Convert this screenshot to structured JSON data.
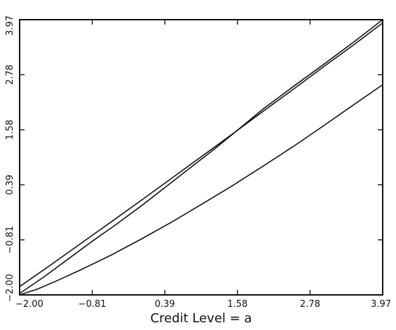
{
  "chart_data": {
    "type": "line",
    "title": "",
    "xlabel": "Credit Level = a",
    "ylabel": "",
    "xlim": [
      -2.0,
      3.97
    ],
    "ylim": [
      -2.0,
      3.97
    ],
    "x_tick_labels": [
      "-2.00",
      "-0.81",
      "0.39",
      "1.58",
      "2.78",
      "3.97"
    ],
    "y_tick_labels": [
      "-2.00",
      "-0.81",
      "0.39",
      "1.58",
      "2.78",
      "3.97"
    ],
    "grid": false,
    "legend": "none",
    "series": [
      {
        "x": [
          -2.0,
          -1.5,
          -1.0,
          -0.5,
          0.0,
          0.5,
          1.0,
          1.5,
          2.0,
          2.5,
          3.0,
          3.5,
          3.97
        ],
        "y": [
          -1.82,
          -1.36,
          -0.89,
          -0.42,
          0.05,
          0.53,
          1.01,
          1.49,
          1.98,
          2.46,
          2.95,
          3.43,
          3.9
        ]
      },
      {
        "x": [
          -2.0,
          -1.6,
          -1.2,
          -0.81,
          -0.4,
          0.0,
          0.39,
          0.8,
          1.2,
          1.58,
          2.0,
          2.5,
          3.0,
          3.5,
          3.97
        ],
        "y": [
          -1.97,
          -1.61,
          -1.22,
          -0.84,
          -0.46,
          -0.07,
          0.33,
          0.75,
          1.16,
          1.57,
          2.03,
          2.52,
          3.0,
          3.49,
          3.97
        ]
      },
      {
        "x": [
          -2.0,
          -1.7,
          -1.4,
          -1.0,
          -0.5,
          0.0,
          0.5,
          1.0,
          1.5,
          2.0,
          2.5,
          3.0,
          3.5,
          3.97
        ],
        "y": [
          -2.0,
          -1.87,
          -1.7,
          -1.46,
          -1.14,
          -0.79,
          -0.42,
          -0.03,
          0.37,
          0.79,
          1.22,
          1.67,
          2.13,
          2.56
        ]
      }
    ]
  }
}
